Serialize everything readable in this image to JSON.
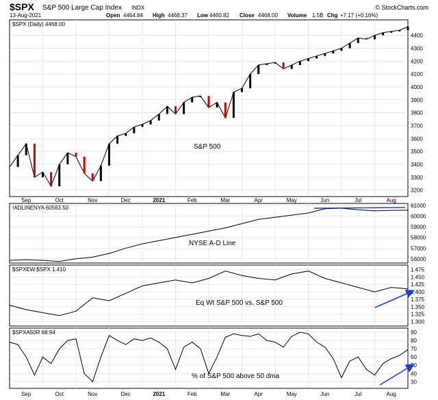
{
  "header": {
    "symbol": "$SPX",
    "name": "S&P 500 Large Cap Index",
    "exchange": "INDX",
    "date": "13-Aug-2021",
    "open_label": "Open",
    "open": "4464.84",
    "high_label": "High",
    "high": "4468.37",
    "low_label": "Low",
    "low": "4460.82",
    "close_label": "Close",
    "close": "4468.00",
    "volume_label": "Volume",
    "volume": "1.5B",
    "chg_label": "Chg",
    "chg": "+7.17 (+0.16%)",
    "watermark": "© StockCharts.com"
  },
  "x_axis": {
    "month_labels": [
      "Sep",
      "Oct",
      "Nov",
      "Dec",
      "2021",
      "Feb",
      "Mar",
      "Apr",
      "May",
      "Jun",
      "Jul",
      "Aug"
    ],
    "month_positions": [
      0.5,
      1.5,
      2.5,
      3.5,
      4.5,
      5.5,
      6.5,
      7.5,
      8.5,
      9.5,
      10.5,
      11.5
    ],
    "month_bold": [
      false,
      false,
      false,
      false,
      true,
      false,
      false,
      false,
      false,
      false,
      false,
      false
    ]
  },
  "colors": {
    "up_candle": "#000000",
    "down_candle": "#cc0000",
    "line": "#000000",
    "annotation": "#1f3fd6",
    "grid": "#d9d9d9",
    "border": "#000000"
  },
  "chart_data": [
    {
      "type": "line",
      "style": "candlestick",
      "legend": "$SPX (Daily) 4468.00",
      "annotation": "S&P 500",
      "ylim": [
        3150,
        4520
      ],
      "y_ticks": [
        3200,
        3300,
        3400,
        3500,
        3600,
        3700,
        3800,
        3900,
        4000,
        4100,
        4200,
        4300,
        4400
      ],
      "x": [
        0,
        0.25,
        0.5,
        0.75,
        1,
        1.25,
        1.5,
        1.75,
        2,
        2.25,
        2.5,
        2.75,
        3,
        3.25,
        3.5,
        3.75,
        4,
        4.25,
        4.5,
        4.75,
        5,
        5.25,
        5.5,
        5.75,
        6,
        6.25,
        6.5,
        6.75,
        7,
        7.25,
        7.5,
        7.75,
        8,
        8.25,
        8.5,
        8.75,
        9,
        9.25,
        9.5,
        9.75,
        10,
        10.25,
        10.5,
        10.75,
        11,
        11.25,
        11.5,
        11.75,
        12
      ],
      "values": [
        3380,
        3470,
        3560,
        3300,
        3340,
        3230,
        3400,
        3490,
        3460,
        3330,
        3270,
        3390,
        3560,
        3620,
        3640,
        3690,
        3710,
        3740,
        3790,
        3850,
        3790,
        3880,
        3920,
        3930,
        3840,
        3880,
        3760,
        3960,
        3990,
        4100,
        4170,
        4180,
        4190,
        4140,
        4170,
        4200,
        4220,
        4240,
        4260,
        4280,
        4300,
        4340,
        4380,
        4370,
        4400,
        4420,
        4430,
        4440,
        4468
      ]
    },
    {
      "type": "line",
      "legend": "!ADLINENYA 60563.50",
      "annotation": "NYSE A-D Line",
      "ylim": [
        55600,
        61200
      ],
      "y_ticks": [
        56000,
        57000,
        58000,
        59000,
        60000,
        61000
      ],
      "x": [
        0,
        0.5,
        1,
        1.5,
        2,
        2.5,
        3,
        3.5,
        4,
        4.5,
        5,
        5.5,
        6,
        6.5,
        7,
        7.5,
        8,
        8.5,
        9,
        9.5,
        10,
        10.5,
        11,
        11.5,
        12
      ],
      "values": [
        55850,
        55900,
        55850,
        55750,
        56000,
        56150,
        56500,
        57000,
        57400,
        57700,
        58000,
        58300,
        58600,
        58900,
        59300,
        59700,
        59900,
        60100,
        60300,
        60700,
        60750,
        60600,
        60500,
        60550,
        60563.5
      ]
    },
    {
      "type": "line",
      "legend": "$SPXEW:$SPX 1.410",
      "annotation": "Eq Wt S&P 500 vs. S&P 500",
      "ylim": [
        1.285,
        1.49
      ],
      "y_ticks": [
        1.3,
        1.325,
        1.35,
        1.375,
        1.4,
        1.425,
        1.45,
        1.475
      ],
      "y_tick_labels": [
        "1.300",
        "1.325",
        "1.350",
        "1.375",
        "1.400",
        "1.425",
        "1.450",
        "1.475"
      ],
      "x": [
        0,
        0.5,
        1,
        1.5,
        2,
        2.5,
        3,
        3.5,
        4,
        4.5,
        5,
        5.5,
        6,
        6.5,
        7,
        7.5,
        8,
        8.5,
        9,
        9.5,
        10,
        10.5,
        11,
        11.5,
        12
      ],
      "values": [
        1.355,
        1.34,
        1.33,
        1.32,
        1.335,
        1.38,
        1.37,
        1.395,
        1.42,
        1.43,
        1.44,
        1.43,
        1.445,
        1.47,
        1.455,
        1.445,
        1.44,
        1.46,
        1.47,
        1.445,
        1.43,
        1.415,
        1.4,
        1.415,
        1.41
      ]
    },
    {
      "type": "line",
      "legend": "$SPXA50R 68.94",
      "annotation": "% of S&P 500 above 50 dma",
      "ylim": [
        22,
        95
      ],
      "y_ticks": [
        30,
        40,
        50,
        60,
        70,
        80,
        90
      ],
      "x": [
        0,
        0.25,
        0.5,
        0.75,
        1,
        1.25,
        1.5,
        1.75,
        2,
        2.25,
        2.5,
        2.75,
        3,
        3.25,
        3.5,
        3.75,
        4,
        4.25,
        4.5,
        4.75,
        5,
        5.25,
        5.5,
        5.75,
        6,
        6.25,
        6.5,
        6.75,
        7,
        7.25,
        7.5,
        7.75,
        8,
        8.25,
        8.5,
        8.75,
        9,
        9.25,
        9.5,
        9.75,
        10,
        10.25,
        10.5,
        10.75,
        11,
        11.25,
        11.5,
        11.75,
        12
      ],
      "values": [
        78,
        75,
        60,
        38,
        60,
        52,
        70,
        80,
        82,
        40,
        30,
        60,
        86,
        80,
        75,
        82,
        80,
        83,
        78,
        70,
        45,
        72,
        78,
        70,
        40,
        60,
        84,
        88,
        86,
        85,
        88,
        80,
        78,
        72,
        85,
        90,
        88,
        78,
        72,
        58,
        35,
        55,
        60,
        45,
        38,
        52,
        58,
        62,
        69
      ]
    }
  ]
}
